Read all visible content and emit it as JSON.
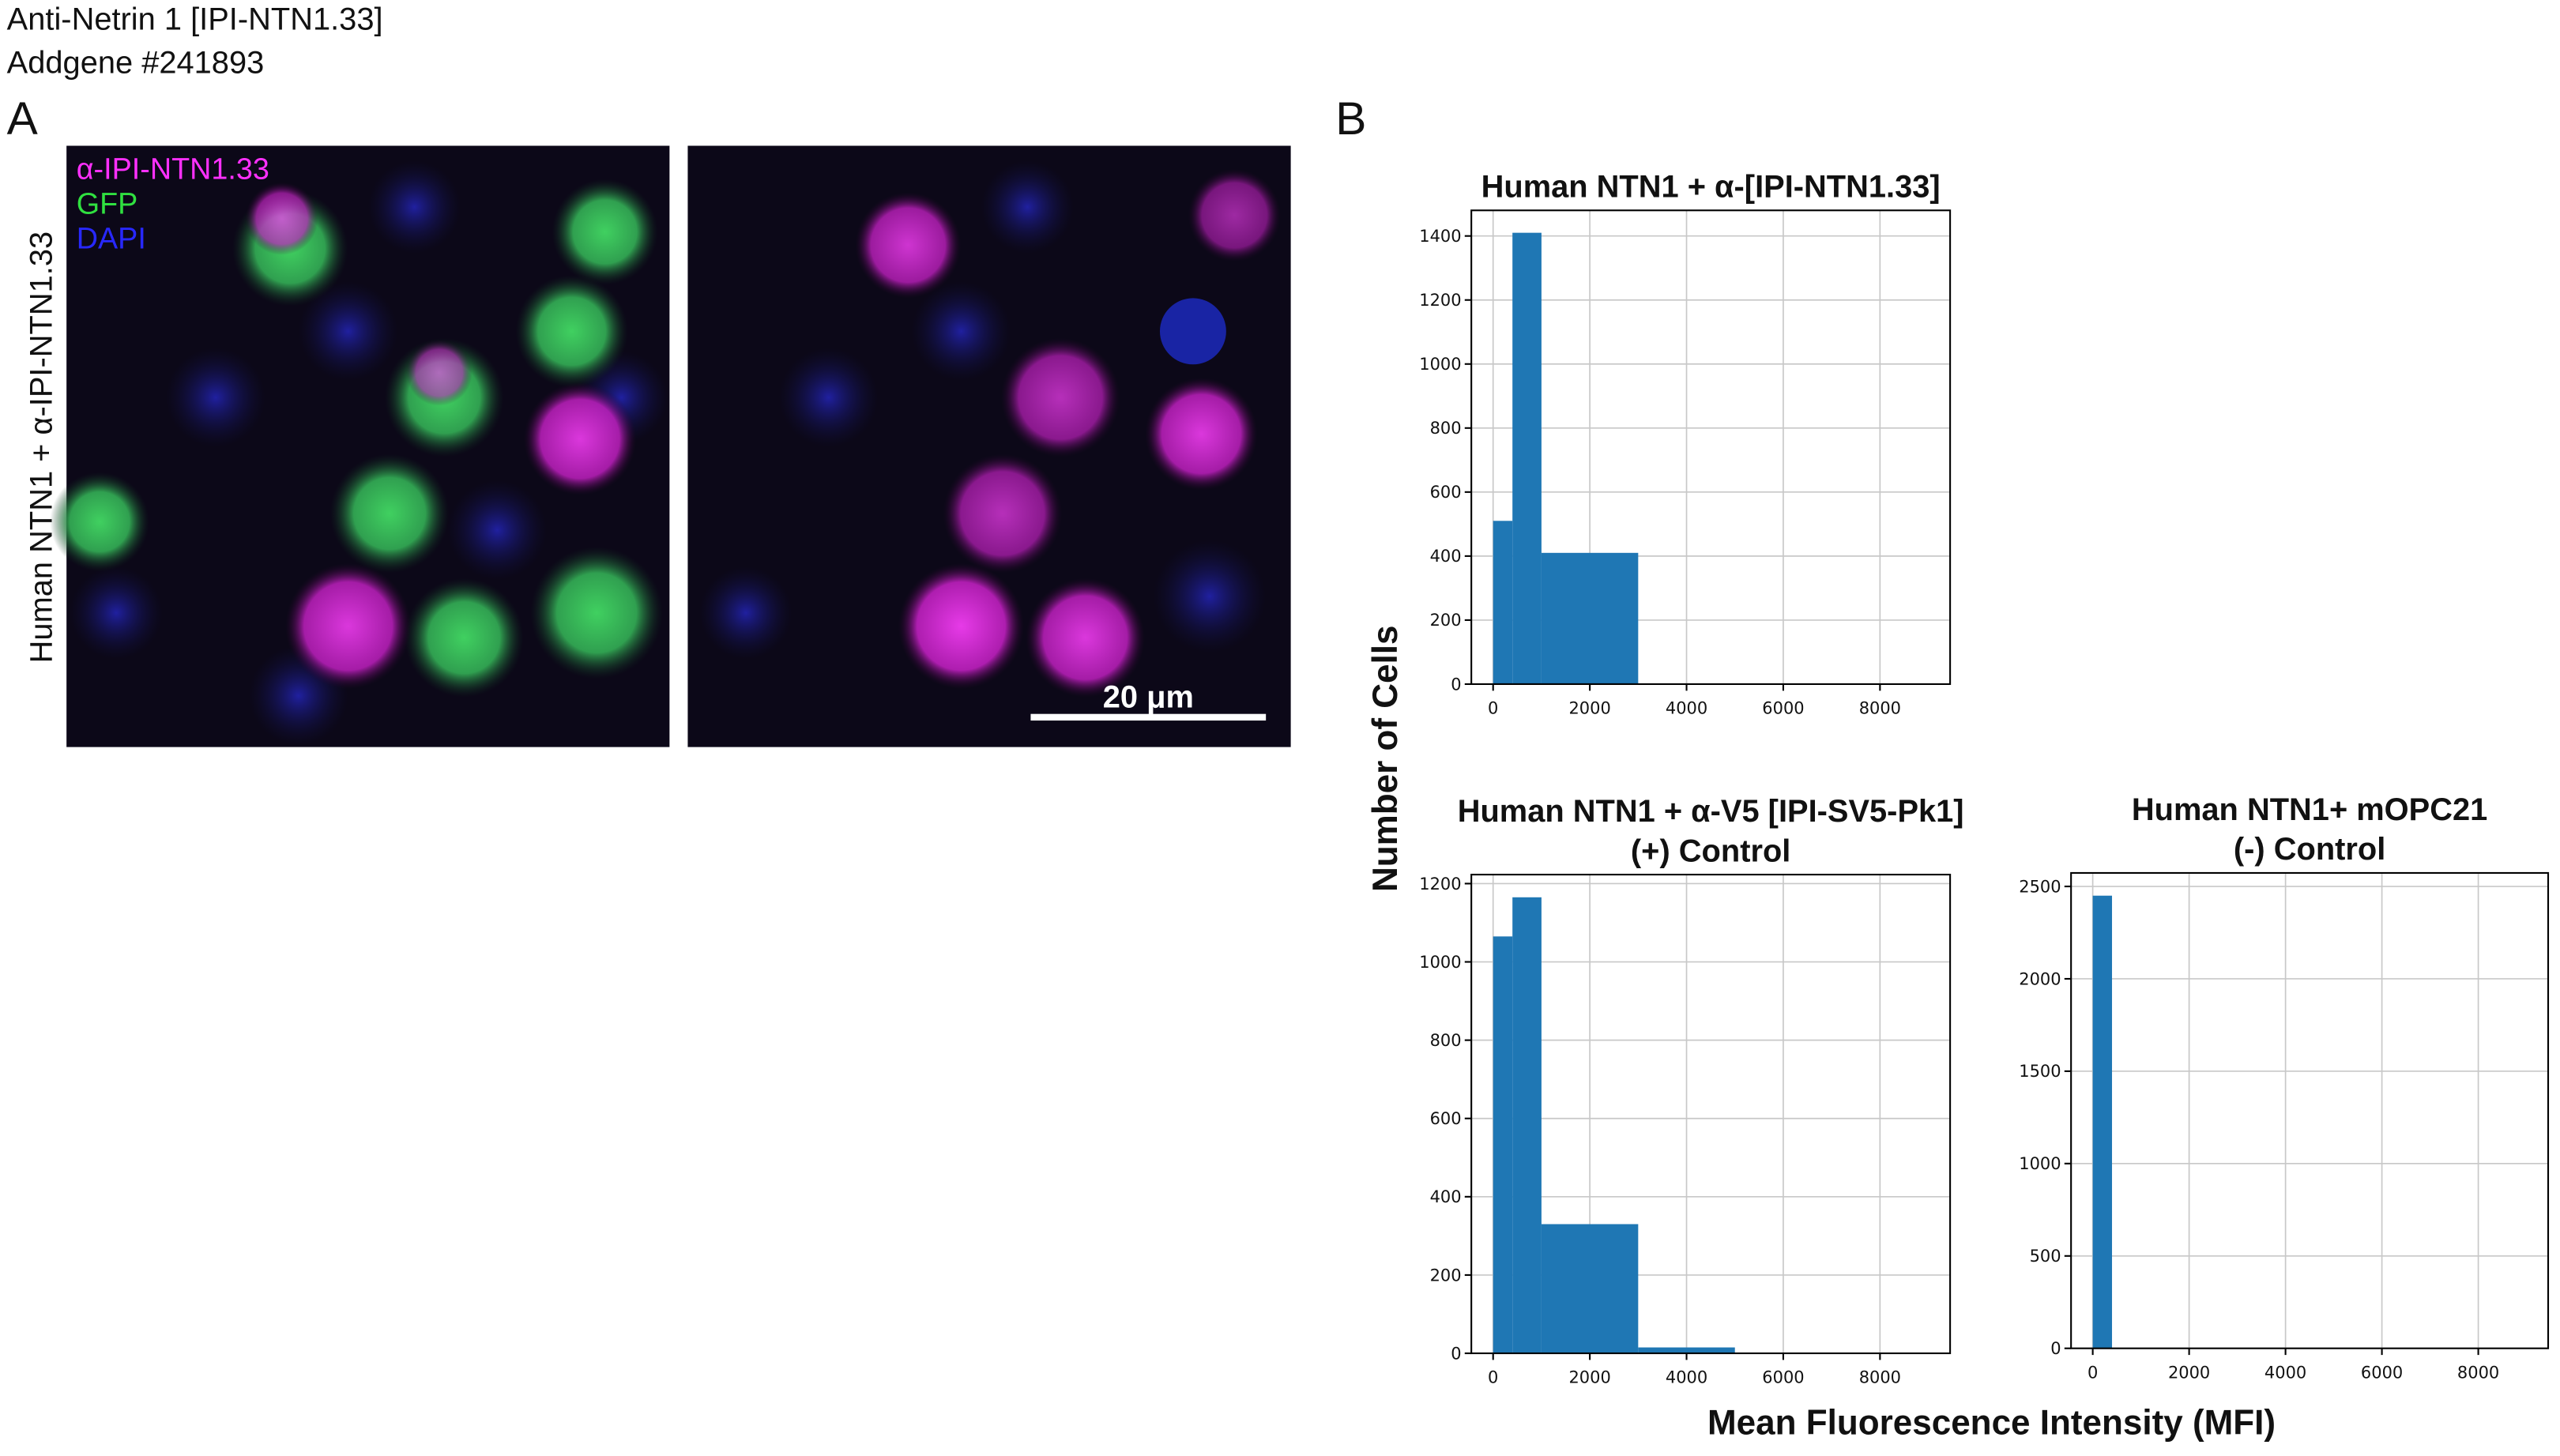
{
  "header": {
    "line1": "Anti-Netrin 1 [IPI-NTN1.33]",
    "line2": "Addgene #241893"
  },
  "panel_a": {
    "label": "A",
    "legend": [
      "α-IPI-NTN1.33",
      "GFP",
      "DAPI"
    ],
    "row_label": "Human NTN1 + α-IPI-NTN1.33",
    "scale_bar": "20 μm"
  },
  "panel_b": {
    "label": "B",
    "ylabel": "Number of Cells",
    "xlabel": "Mean Fluorescence Intensity (MFI)"
  },
  "chart_data": [
    {
      "type": "histogram",
      "title": "Human NTN1 + α-[IPI-NTN1.33]",
      "bins": [
        0,
        400,
        1000,
        3000,
        5000,
        9000
      ],
      "values": [
        510,
        1410,
        410,
        0,
        0
      ],
      "color": "#1f77b4",
      "xlim": [
        -450,
        9450
      ],
      "ylim": [
        0,
        1480
      ],
      "xticks": [
        0,
        2000,
        4000,
        6000,
        8000
      ],
      "yticks": [
        0,
        200,
        400,
        600,
        800,
        1000,
        1200,
        1400
      ],
      "grid": true
    },
    {
      "type": "histogram",
      "title": "Human NTN1 + α-V5 [IPI-SV5-Pk1]",
      "subtitle": "(+) Control",
      "bins": [
        0,
        400,
        1000,
        3000,
        5000,
        9000
      ],
      "values": [
        1065,
        1165,
        330,
        15,
        0
      ],
      "color": "#1f77b4",
      "xlim": [
        -450,
        9450
      ],
      "ylim": [
        0,
        1223
      ],
      "xticks": [
        0,
        2000,
        4000,
        6000,
        8000
      ],
      "yticks": [
        0,
        200,
        400,
        600,
        800,
        1000,
        1200
      ],
      "grid": true
    },
    {
      "type": "histogram",
      "title": "Human NTN1+ mOPC21",
      "subtitle": "(-) Control",
      "bins": [
        0,
        400,
        1000,
        3000,
        5000,
        9000
      ],
      "values": [
        2450,
        0,
        0,
        0,
        0
      ],
      "color": "#1f77b4",
      "xlim": [
        -450,
        9450
      ],
      "ylim": [
        0,
        2573
      ],
      "xticks": [
        0,
        2000,
        4000,
        6000,
        8000
      ],
      "yticks": [
        0,
        500,
        1000,
        1500,
        2000,
        2500
      ],
      "grid": true
    }
  ]
}
